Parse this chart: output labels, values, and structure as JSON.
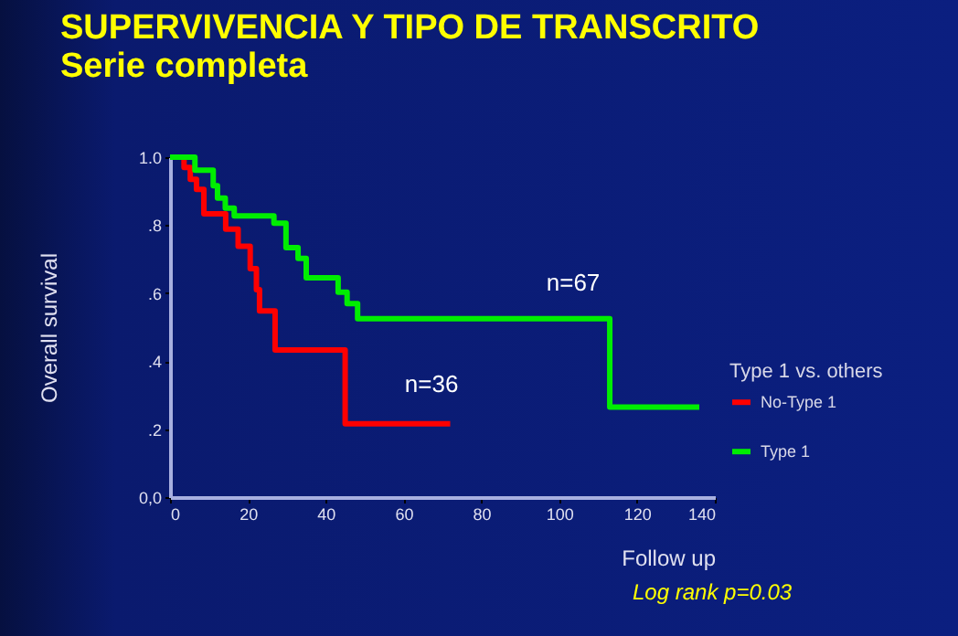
{
  "chart_data": {
    "type": "step",
    "title": "SUPERVIVENCIA Y TIPO DE TRANSCRITO",
    "subtitle": "Serie completa",
    "xlabel": "Follow up",
    "ylabel": "Overall survival",
    "legend_title": "Type 1 vs. others",
    "legend": "right",
    "xlim": [
      0,
      140
    ],
    "xticks": [
      0,
      20,
      40,
      60,
      80,
      100,
      120,
      140
    ],
    "ylim": [
      0,
      1
    ],
    "yticks": [
      {
        "value": 0,
        "label": "0,0"
      },
      {
        "value": 0.2,
        "label": ".2"
      },
      {
        "value": 0.4,
        "label": ".4"
      },
      {
        "value": 0.6,
        "label": ".6"
      },
      {
        "value": 0.8,
        "label": ".8"
      },
      {
        "value": 1,
        "label": "1.0"
      }
    ],
    "series": [
      {
        "name": "No-Type 1",
        "color": "#ff0000",
        "x": [
          0,
          3.6,
          5.2,
          6.8,
          8.7,
          14.3,
          17.5,
          20.6,
          22.2,
          23,
          27,
          45,
          72
        ],
        "values": [
          1,
          0.97,
          0.935,
          0.905,
          0.833,
          0.788,
          0.738,
          0.672,
          0.61,
          0.548,
          0.433,
          0.216,
          0.216
        ]
      },
      {
        "name": "Type 1",
        "color": "#00ee00",
        "x": [
          0,
          6.4,
          11.1,
          12.2,
          14.2,
          16.5,
          26.7,
          29.8,
          32.9,
          35,
          43.2,
          45.5,
          48.2,
          113,
          136
        ],
        "values": [
          1,
          0.962,
          0.916,
          0.88,
          0.85,
          0.827,
          0.806,
          0.734,
          0.702,
          0.645,
          0.603,
          0.569,
          0.525,
          0.265,
          0.265
        ]
      }
    ],
    "annotations": [
      "n=67",
      "n=36",
      "Log rank p=0.03"
    ]
  }
}
